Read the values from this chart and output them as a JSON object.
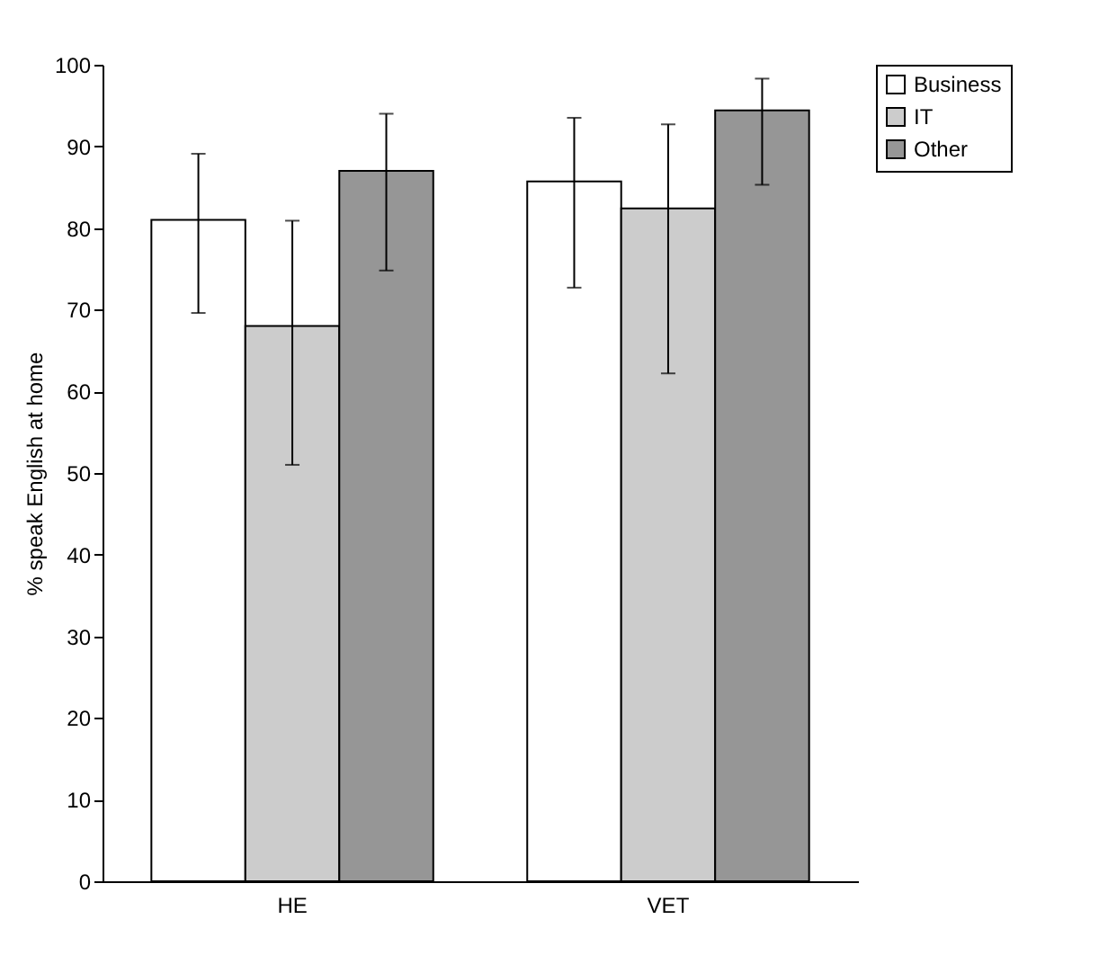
{
  "chart_data": {
    "type": "bar",
    "ylabel": "% speak English at home",
    "categories": [
      "HE",
      "VET"
    ],
    "series": [
      {
        "name": "Business",
        "color": "#ffffff",
        "values": [
          81,
          85.7
        ],
        "errors": [
          [
            69.6,
            89.1
          ],
          [
            72.7,
            93.5
          ]
        ]
      },
      {
        "name": "IT",
        "color": "#cccccc",
        "values": [
          68,
          82.4
        ],
        "errors": [
          [
            51,
            80.9
          ],
          [
            62.2,
            92.7
          ]
        ]
      },
      {
        "name": "Other",
        "color": "#969696",
        "values": [
          87,
          94.4
        ],
        "errors": [
          [
            74.8,
            94
          ],
          [
            85.3,
            98.3
          ]
        ]
      }
    ],
    "ylim": [
      0,
      100
    ],
    "yticks": [
      0,
      10,
      20,
      30,
      40,
      50,
      60,
      70,
      80,
      90,
      100
    ],
    "grid": false,
    "legend": "top right"
  }
}
